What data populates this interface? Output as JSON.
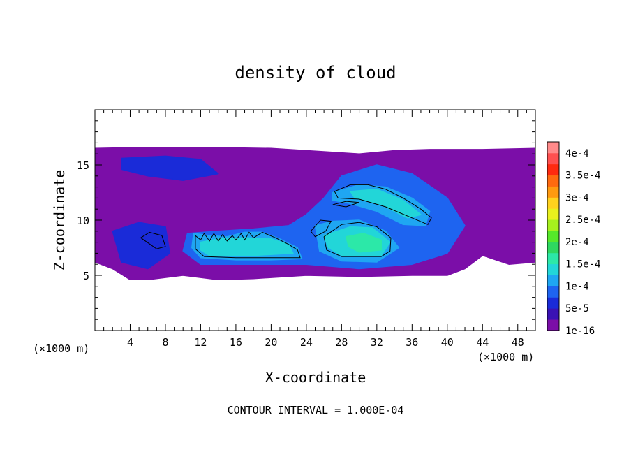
{
  "chart_data": {
    "type": "heatmap",
    "title": "density of cloud",
    "xlabel": "X-coordinate",
    "ylabel": "Z-coordinate",
    "x_unit_left": "(×1000 m)",
    "x_unit_right": "(×1000 m)",
    "footer": "CONTOUR INTERVAL = 1.000E-04",
    "xlim": [
      0,
      50
    ],
    "ylim": [
      0,
      20
    ],
    "xticks": [
      4,
      8,
      12,
      16,
      20,
      24,
      28,
      32,
      36,
      40,
      44,
      48
    ],
    "xtick_labels": [
      "4",
      "8",
      "12",
      "16",
      "20",
      "24",
      "28",
      "32",
      "36",
      "40",
      "44",
      "48"
    ],
    "yticks": [
      5,
      10,
      15
    ],
    "ytick_labels": [
      "5",
      "10",
      "15"
    ],
    "x_minor_step": 1,
    "y_minor_step": 1,
    "colorbar": {
      "levels": [
        {
          "label": "1e-16",
          "color": "#7b0ea8"
        },
        {
          "label": "",
          "color": "#3a12b4"
        },
        {
          "label": "5e-5",
          "color": "#1a2bd8"
        },
        {
          "label": "",
          "color": "#1e64f0"
        },
        {
          "label": "1e-4",
          "color": "#1fa6f2"
        },
        {
          "label": "",
          "color": "#22d6d8"
        },
        {
          "label": "1.5e-4",
          "color": "#2ce8a8"
        },
        {
          "label": "",
          "color": "#2ed860"
        },
        {
          "label": "2e-4",
          "color": "#56e82a"
        },
        {
          "label": "",
          "color": "#a6f01e"
        },
        {
          "label": "2.5e-4",
          "color": "#e8f01e"
        },
        {
          "label": "",
          "color": "#ffd21e"
        },
        {
          "label": "3e-4",
          "color": "#ff9a10"
        },
        {
          "label": "",
          "color": "#ff6a10"
        },
        {
          "label": "3.5e-4",
          "color": "#ff2a10"
        },
        {
          "label": "",
          "color": "#ff5050"
        },
        {
          "label": "4e-4",
          "color": "#ff8a8a"
        }
      ]
    },
    "cloud_layers": [
      {
        "level": 0,
        "points": [
          [
            0,
            16.5
          ],
          [
            6,
            16.6
          ],
          [
            12,
            16.6
          ],
          [
            20,
            16.5
          ],
          [
            26,
            16.2
          ],
          [
            30,
            16.0
          ],
          [
            34,
            16.3
          ],
          [
            38,
            16.4
          ],
          [
            44,
            16.4
          ],
          [
            50,
            16.5
          ],
          [
            50,
            6.2
          ],
          [
            47,
            6.0
          ],
          [
            44,
            6.8
          ],
          [
            42,
            5.6
          ],
          [
            40,
            5.0
          ],
          [
            36,
            5.0
          ],
          [
            30,
            4.9
          ],
          [
            24,
            5.0
          ],
          [
            18,
            4.7
          ],
          [
            14,
            4.6
          ],
          [
            10,
            5.0
          ],
          [
            6,
            4.6
          ],
          [
            4,
            4.6
          ],
          [
            2,
            5.6
          ],
          [
            0,
            6.2
          ]
        ]
      },
      {
        "level": 2,
        "points": [
          [
            3,
            15.6
          ],
          [
            8,
            15.8
          ],
          [
            12,
            15.5
          ],
          [
            14,
            14.2
          ],
          [
            10,
            13.6
          ],
          [
            6,
            14.0
          ],
          [
            3,
            14.6
          ]
        ]
      },
      {
        "level": 2,
        "points": [
          [
            2,
            9.0
          ],
          [
            5,
            9.8
          ],
          [
            8,
            9.4
          ],
          [
            8.5,
            7.0
          ],
          [
            6,
            5.6
          ],
          [
            3,
            6.2
          ]
        ]
      },
      {
        "level": 3,
        "points": [
          [
            10.5,
            8.8
          ],
          [
            14,
            9.0
          ],
          [
            18,
            9.2
          ],
          [
            22,
            9.5
          ],
          [
            24,
            10.5
          ],
          [
            26,
            12.0
          ],
          [
            28,
            14.0
          ],
          [
            32,
            15.0
          ],
          [
            36,
            14.2
          ],
          [
            40,
            12.0
          ],
          [
            42,
            9.5
          ],
          [
            40,
            7.0
          ],
          [
            36,
            6.0
          ],
          [
            30,
            5.6
          ],
          [
            24,
            6.0
          ],
          [
            18,
            6.0
          ],
          [
            12,
            6.0
          ],
          [
            10,
            7.2
          ]
        ]
      },
      {
        "level": 4,
        "points": [
          [
            11.2,
            8.8
          ],
          [
            13,
            8.6
          ],
          [
            15,
            8.5
          ],
          [
            17,
            8.9
          ],
          [
            19,
            8.9
          ],
          [
            21,
            8.3
          ],
          [
            23,
            7.5
          ],
          [
            23.5,
            6.5
          ],
          [
            20,
            6.4
          ],
          [
            16,
            6.4
          ],
          [
            12,
            6.6
          ],
          [
            11,
            7.5
          ]
        ]
      },
      {
        "level": 4,
        "points": [
          [
            25,
            9.5
          ],
          [
            27,
            9.9
          ],
          [
            30,
            10.0
          ],
          [
            33,
            9.0
          ],
          [
            34.5,
            7.5
          ],
          [
            32,
            6.2
          ],
          [
            28,
            6.3
          ],
          [
            25.5,
            7.2
          ]
        ]
      },
      {
        "level": 4,
        "points": [
          [
            27,
            12.5
          ],
          [
            30,
            13.2
          ],
          [
            33,
            13.0
          ],
          [
            36,
            12.0
          ],
          [
            38,
            10.8
          ],
          [
            37.5,
            9.5
          ],
          [
            35,
            9.6
          ],
          [
            32,
            10.8
          ],
          [
            29,
            11.5
          ],
          [
            27,
            11.8
          ]
        ]
      },
      {
        "level": 5,
        "points": [
          [
            12,
            8.0
          ],
          [
            14,
            8.3
          ],
          [
            17,
            8.4
          ],
          [
            20,
            8.3
          ],
          [
            22,
            7.8
          ],
          [
            22.5,
            7.0
          ],
          [
            18,
            6.8
          ],
          [
            13,
            6.8
          ],
          [
            12,
            7.3
          ]
        ]
      },
      {
        "level": 5,
        "points": [
          [
            26,
            8.6
          ],
          [
            29,
            9.4
          ],
          [
            31.5,
            9.3
          ],
          [
            33.5,
            8.0
          ],
          [
            32.5,
            6.8
          ],
          [
            28,
            6.8
          ],
          [
            26.5,
            7.5
          ]
        ]
      },
      {
        "level": 6,
        "points": [
          [
            28.5,
            8.5
          ],
          [
            30.5,
            8.8
          ],
          [
            32.5,
            8.2
          ],
          [
            32.5,
            7.3
          ],
          [
            30,
            7.1
          ],
          [
            28.8,
            7.6
          ]
        ]
      },
      {
        "level": 5,
        "points": [
          [
            29,
            12.6
          ],
          [
            32,
            12.8
          ],
          [
            35,
            11.8
          ],
          [
            37,
            10.5
          ],
          [
            35.5,
            10.2
          ],
          [
            32.5,
            11.4
          ],
          [
            29.5,
            12.0
          ]
        ]
      }
    ],
    "contours": [
      [
        [
          11.4,
          8.6
        ],
        [
          12,
          8.2
        ],
        [
          12.4,
          8.8
        ],
        [
          13,
          8.1
        ],
        [
          13.5,
          8.8
        ],
        [
          14,
          8.1
        ],
        [
          14.5,
          8.7
        ],
        [
          15,
          8.1
        ],
        [
          15.6,
          8.6
        ],
        [
          16,
          8.2
        ],
        [
          16.6,
          8.8
        ],
        [
          17,
          8.2
        ],
        [
          17.5,
          8.9
        ],
        [
          18,
          8.4
        ],
        [
          19,
          8.9
        ],
        [
          20.5,
          8.4
        ],
        [
          22,
          7.8
        ],
        [
          23,
          7.3
        ],
        [
          23.3,
          6.6
        ],
        [
          20,
          6.6
        ],
        [
          16,
          6.6
        ],
        [
          12.4,
          6.7
        ],
        [
          11.4,
          7.4
        ],
        [
          11.4,
          8.6
        ]
      ],
      [
        [
          26,
          8.5
        ],
        [
          28,
          9.6
        ],
        [
          30,
          9.8
        ],
        [
          32,
          9.4
        ],
        [
          33.6,
          8.4
        ],
        [
          33.5,
          7.2
        ],
        [
          32.5,
          6.7
        ],
        [
          28,
          6.7
        ],
        [
          26.3,
          7.3
        ],
        [
          26,
          8.5
        ]
      ],
      [
        [
          27.2,
          12.6
        ],
        [
          29,
          13.2
        ],
        [
          31,
          13.2
        ],
        [
          33,
          12.8
        ],
        [
          35,
          12.0
        ],
        [
          37,
          11.0
        ],
        [
          38.2,
          10.2
        ],
        [
          37.8,
          9.6
        ],
        [
          36,
          10.2
        ],
        [
          33,
          11.2
        ],
        [
          30,
          11.9
        ],
        [
          27.6,
          12.0
        ],
        [
          27.2,
          12.6
        ]
      ],
      [
        [
          27,
          11.4
        ],
        [
          28.5,
          11.7
        ],
        [
          30,
          11.6
        ],
        [
          28.5,
          11.2
        ],
        [
          27,
          11.4
        ]
      ],
      [
        [
          24.5,
          9.0
        ],
        [
          25.6,
          10.0
        ],
        [
          26.8,
          9.9
        ],
        [
          26.2,
          9.0
        ],
        [
          25,
          8.5
        ],
        [
          24.5,
          9.0
        ]
      ],
      [
        [
          5.2,
          8.4
        ],
        [
          6.2,
          8.9
        ],
        [
          7.6,
          8.6
        ],
        [
          8,
          7.6
        ],
        [
          7,
          7.4
        ],
        [
          6.1,
          7.9
        ],
        [
          5.2,
          8.4
        ]
      ]
    ]
  }
}
